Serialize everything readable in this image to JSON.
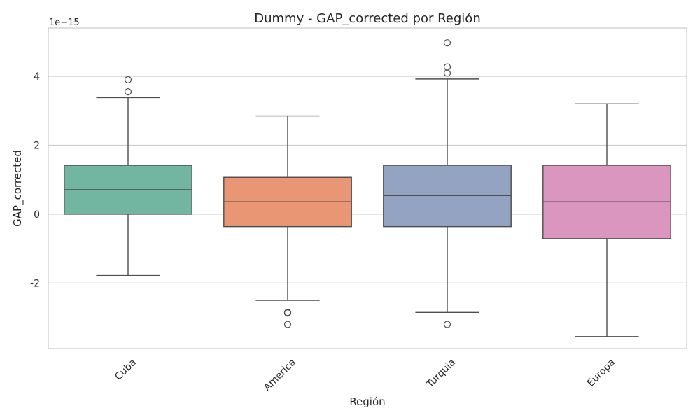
{
  "chart_data": {
    "type": "box",
    "title": "Dummy - GAP_corrected por Región",
    "xlabel": "Región",
    "ylabel": "GAP_corrected",
    "scale_label": "1e−15",
    "ylim": [
      -3.9,
      5.4
    ],
    "yticks": [
      -2,
      0,
      2,
      4
    ],
    "ytick_labels": [
      "-2",
      "0",
      "2",
      "4"
    ],
    "grid": true,
    "categories": [
      "Cuba",
      "America",
      "Turquia",
      "Europa"
    ],
    "colors": [
      "#72b6a1",
      "#e99675",
      "#95a3c3",
      "#db96c0"
    ],
    "boxes": [
      {
        "category": "Cuba",
        "whislo": -1.78,
        "q1": 0.0,
        "median": 0.71,
        "q3": 1.42,
        "whishi": 3.38,
        "fliers": [
          3.9,
          3.55
        ]
      },
      {
        "category": "America",
        "whislo": -2.5,
        "q1": -0.36,
        "median": 0.36,
        "q3": 1.07,
        "whishi": 2.85,
        "fliers": [
          -2.85,
          -2.87,
          -3.2
        ]
      },
      {
        "category": "Turquia",
        "whislo": -2.85,
        "q1": -0.36,
        "median": 0.54,
        "q3": 1.42,
        "whishi": 3.92,
        "fliers": [
          4.97,
          4.27,
          4.09,
          -3.2
        ]
      },
      {
        "category": "Europa",
        "whislo": -3.55,
        "q1": -0.71,
        "median": 0.36,
        "q3": 1.42,
        "whishi": 3.2,
        "fliers": []
      }
    ]
  }
}
